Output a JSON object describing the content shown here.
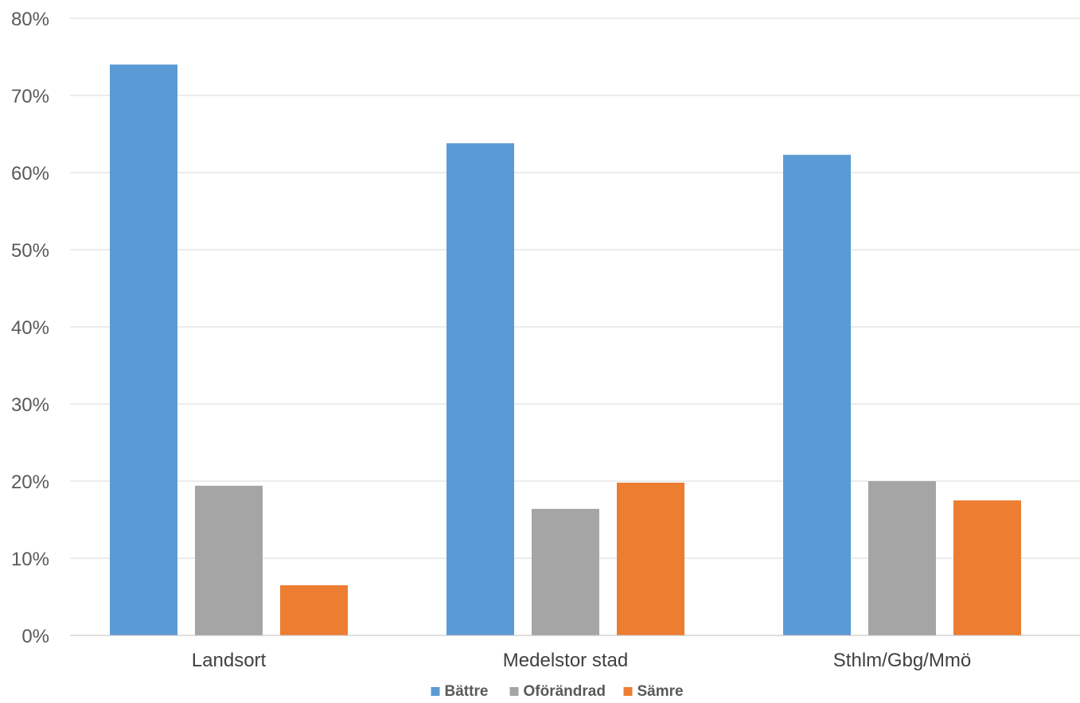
{
  "chart_data": {
    "type": "bar",
    "categories": [
      "Landsort",
      "Medelstor stad",
      "Sthlm/Gbg/Mmö"
    ],
    "series": [
      {
        "name": "Bättre",
        "color": "#5b9bd5",
        "values": [
          74,
          63.8,
          62.3
        ]
      },
      {
        "name": "Oförändrad",
        "color": "#a5a5a5",
        "values": [
          19.4,
          16.4,
          20
        ]
      },
      {
        "name": "Sämre",
        "color": "#ed7d31",
        "values": [
          6.5,
          19.8,
          17.5
        ]
      }
    ],
    "title": "",
    "xlabel": "",
    "ylabel": "",
    "ylim": [
      0,
      80
    ],
    "yticks": [
      0,
      10,
      20,
      30,
      40,
      50,
      60,
      70,
      80
    ],
    "ytick_labels": [
      "0%",
      "10%",
      "20%",
      "30%",
      "40%",
      "50%",
      "60%",
      "70%",
      "80%"
    ],
    "grid": true,
    "legend_position": "bottom"
  }
}
